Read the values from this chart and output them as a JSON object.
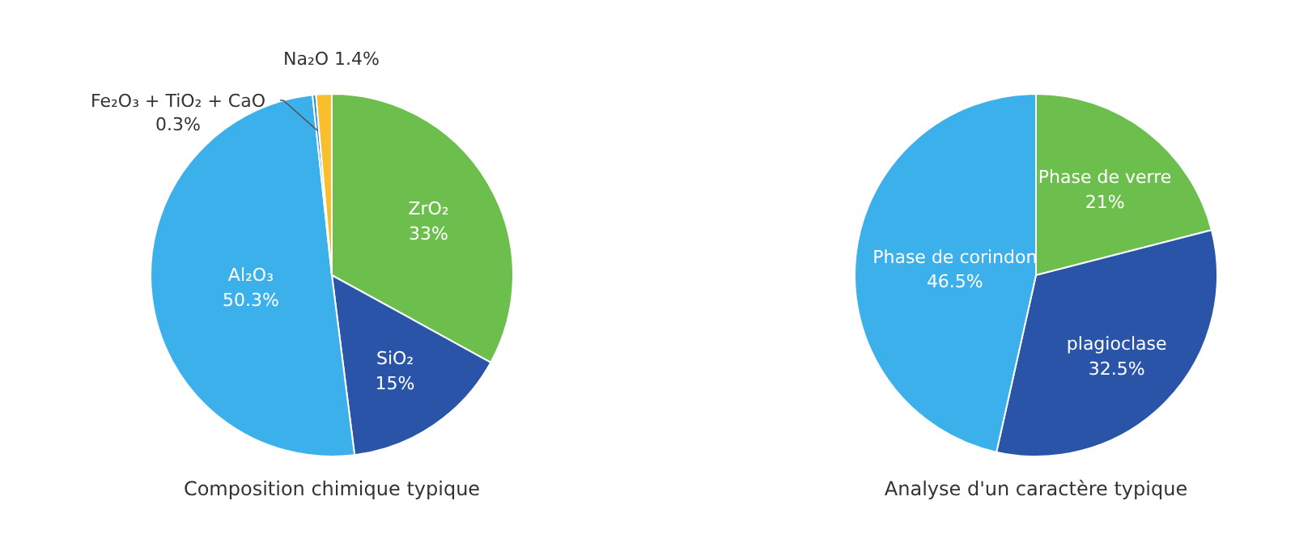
{
  "chart_data": [
    {
      "type": "pie",
      "title": "Composition chimique typique",
      "categories": [
        "ZrO₂",
        "SiO₂",
        "Al₂O₃",
        "Fe₂O₃ + TiO₂ + CaO",
        "Na₂O"
      ],
      "values": [
        33,
        15,
        50.3,
        0.3,
        1.4
      ],
      "value_labels": [
        "33%",
        "15%",
        "50.3%",
        "0.3%",
        "1.4%"
      ],
      "colors": [
        "#6cbf4c",
        "#2a54a8",
        "#3bb0ea",
        "#1e88d6",
        "#f8bf2c"
      ]
    },
    {
      "type": "pie",
      "title": "Analyse d'un caractère typique",
      "categories": [
        "Phase de verre",
        "plagioclase",
        "Phase de corindon"
      ],
      "values": [
        21,
        32.5,
        46.5
      ],
      "value_labels": [
        "21%",
        "32.5%",
        "46.5%"
      ],
      "colors": [
        "#6cbf4c",
        "#2a54a8",
        "#3bb0ea"
      ]
    }
  ]
}
